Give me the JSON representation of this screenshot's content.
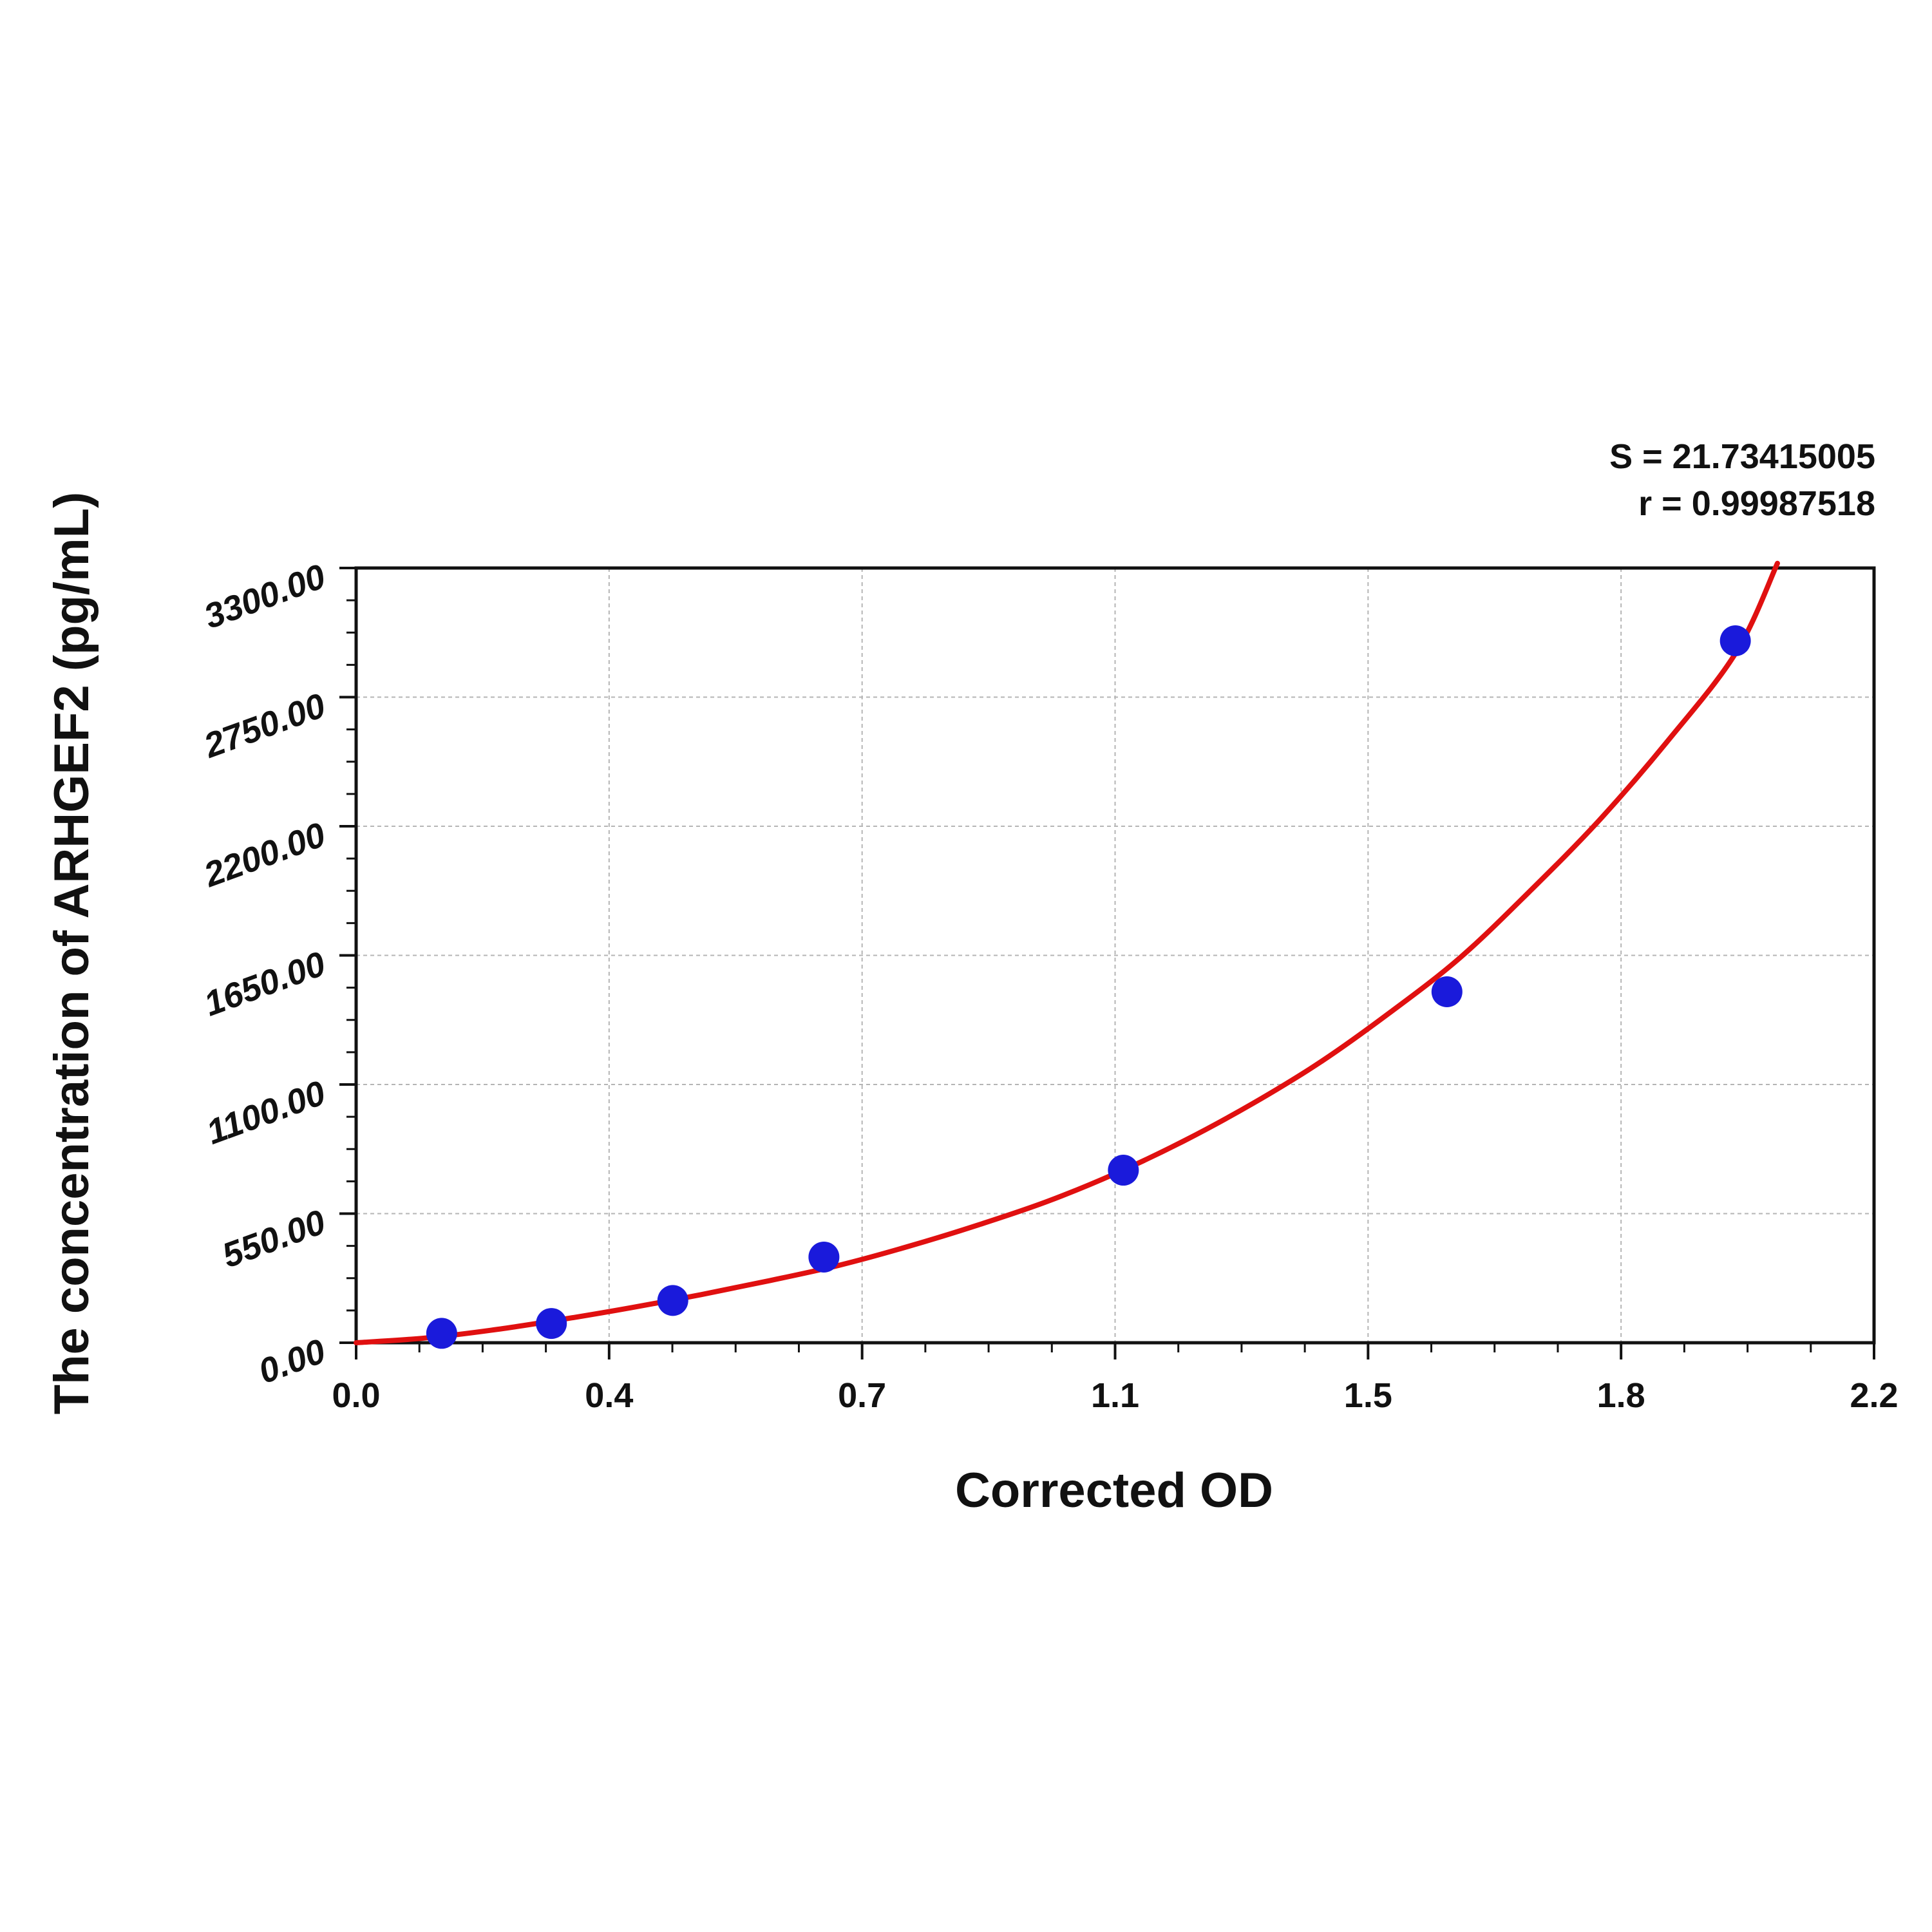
{
  "chart_data": {
    "type": "scatter",
    "xlabel": "Corrected OD",
    "ylabel": "The concentration of ARHGEF2 (pg/mL)",
    "xlim": [
      0.0,
      2.2
    ],
    "ylim": [
      0.0,
      3300.0
    ],
    "x_ticks": [
      "0.0",
      "0.4",
      "0.7",
      "1.1",
      "1.5",
      "1.8",
      "2.2"
    ],
    "y_ticks": [
      "0.00",
      "550.00",
      "1100.00",
      "1650.00",
      "2200.00",
      "2750.00",
      "3300.00"
    ],
    "grid": true,
    "annotations": [
      "S = 21.73415005",
      "r = 0.99987518"
    ],
    "colors": {
      "points": "#1a1adb",
      "curve": "#e01010",
      "grid": "#b5b5b5",
      "axis": "#111111"
    },
    "series": [
      {
        "type": "scatter",
        "x": [
          0.124,
          0.283,
          0.459,
          0.678,
          1.112,
          1.581,
          1.999
        ],
        "y": [
          40,
          82,
          180,
          365,
          735,
          1495,
          2990
        ]
      },
      {
        "type": "line",
        "x": [
          0.0,
          0.1,
          0.2,
          0.3,
          0.4,
          0.5,
          0.6,
          0.7,
          0.8,
          0.9,
          1.0,
          1.1,
          1.2,
          1.3,
          1.4,
          1.5,
          1.6,
          1.7,
          1.8,
          1.9,
          2.0,
          2.06
        ],
        "y": [
          0,
          20,
          55,
          100,
          150,
          205,
          265,
          330,
          410,
          500,
          600,
          720,
          860,
          1020,
          1200,
          1410,
          1640,
          1920,
          2220,
          2560,
          2940,
          3320
        ]
      }
    ]
  }
}
